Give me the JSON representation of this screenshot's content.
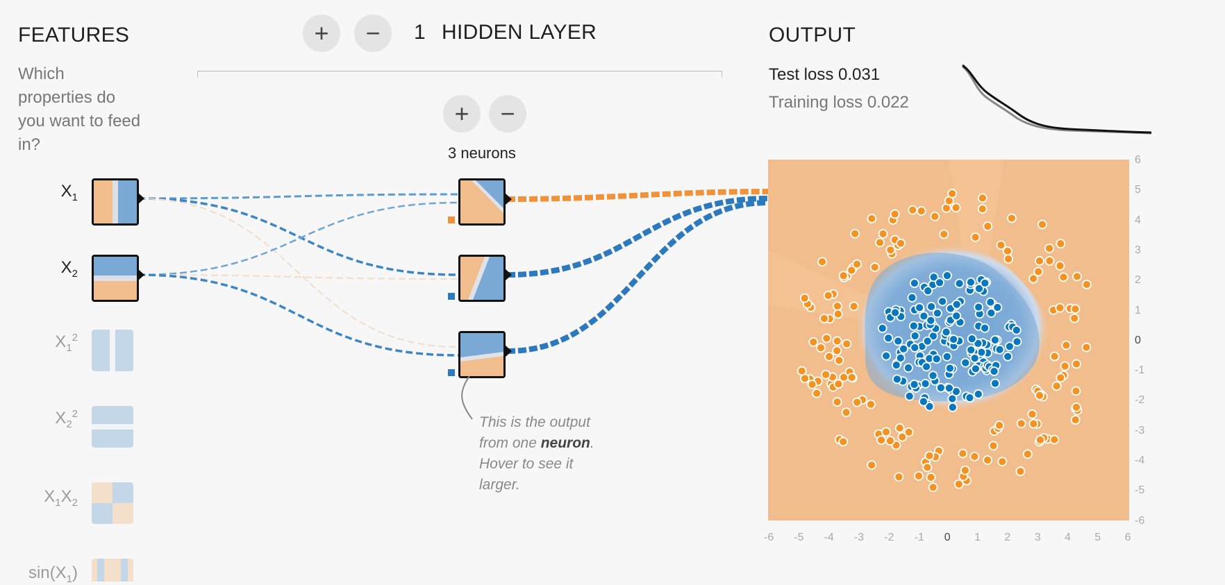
{
  "features": {
    "title": "FEATURES",
    "question": "Which properties do you want to feed in?",
    "items": [
      {
        "base": "X",
        "sub": "1",
        "sup": ""
      },
      {
        "base": "X",
        "sub": "2",
        "sup": ""
      },
      {
        "base": "X",
        "sub": "1",
        "sup": "2"
      },
      {
        "base": "X",
        "sub": "2",
        "sup": "2"
      },
      {
        "base": "X",
        "sub": "1",
        "base2": "X",
        "sub2": "2"
      },
      {
        "func": "sin(X",
        "sub": "1",
        "close": ")"
      }
    ]
  },
  "hidden": {
    "add_layer": "+",
    "remove_layer": "−",
    "layer_count": "1",
    "layer_label": "HIDDEN LAYER",
    "add_neuron": "+",
    "remove_neuron": "−",
    "neurons_label": "3 neurons"
  },
  "annotation": {
    "line1": "This is the output",
    "from": "from one ",
    "bold": "neuron",
    "period": ".",
    "line3": "Hover to see it",
    "line4": "larger."
  },
  "output": {
    "title": "OUTPUT",
    "test_loss": "Test loss 0.031",
    "training_loss": "Training loss 0.022",
    "x_ticks": [
      "-6",
      "-5",
      "-4",
      "-3",
      "-2",
      "-1",
      "0",
      "1",
      "2",
      "3",
      "4",
      "5",
      "6"
    ],
    "y_ticks": [
      "6",
      "5",
      "4",
      "3",
      "2",
      "1",
      "0",
      "-1",
      "-2",
      "-3",
      "-4",
      "-5",
      "-6"
    ]
  },
  "colors": {
    "orange": "#f59322",
    "blue": "#0877bd",
    "orange_fill": "#f2bd8c",
    "blue_fill": "#7aa9d6"
  }
}
